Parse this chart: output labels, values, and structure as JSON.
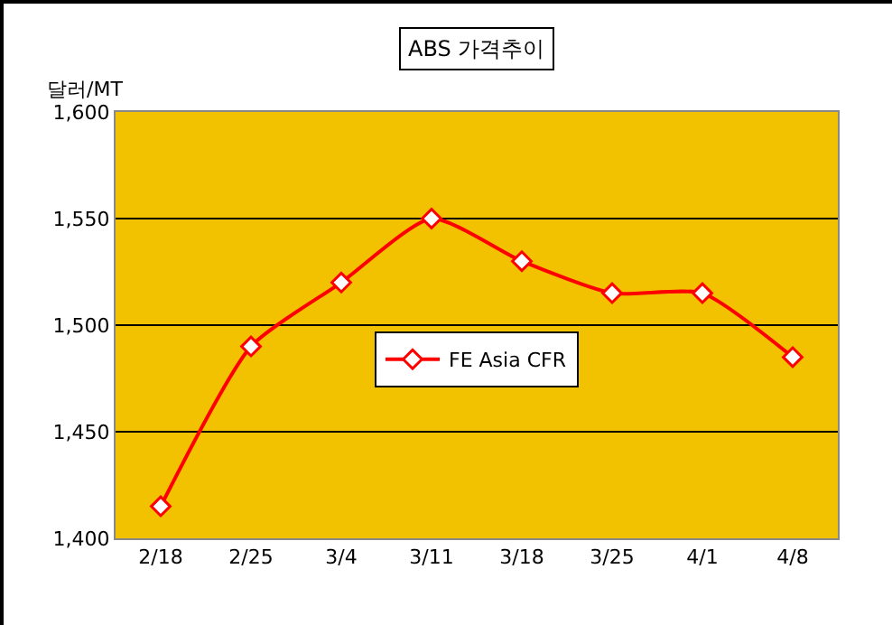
{
  "chart_data": {
    "type": "line",
    "title": "ABS 가격추이",
    "ylabel": "달러/MT",
    "categories": [
      "2/18",
      "2/25",
      "3/4",
      "3/11",
      "3/18",
      "3/25",
      "4/1",
      "4/8"
    ],
    "series": [
      {
        "name": "FE Asia CFR",
        "color": "#ff0000",
        "values": [
          1415,
          1490,
          1520,
          1550,
          1530,
          1515,
          1515,
          1485
        ]
      }
    ],
    "ylim": [
      1400,
      1600
    ],
    "yticks": [
      {
        "value": 1400,
        "label": "1,400"
      },
      {
        "value": 1450,
        "label": "1,450"
      },
      {
        "value": 1500,
        "label": "1,500"
      },
      {
        "value": 1550,
        "label": "1,550"
      },
      {
        "value": 1600,
        "label": "1,600"
      }
    ],
    "grid": "y",
    "legend": "center",
    "marker": "diamond",
    "line_style": "solid"
  }
}
